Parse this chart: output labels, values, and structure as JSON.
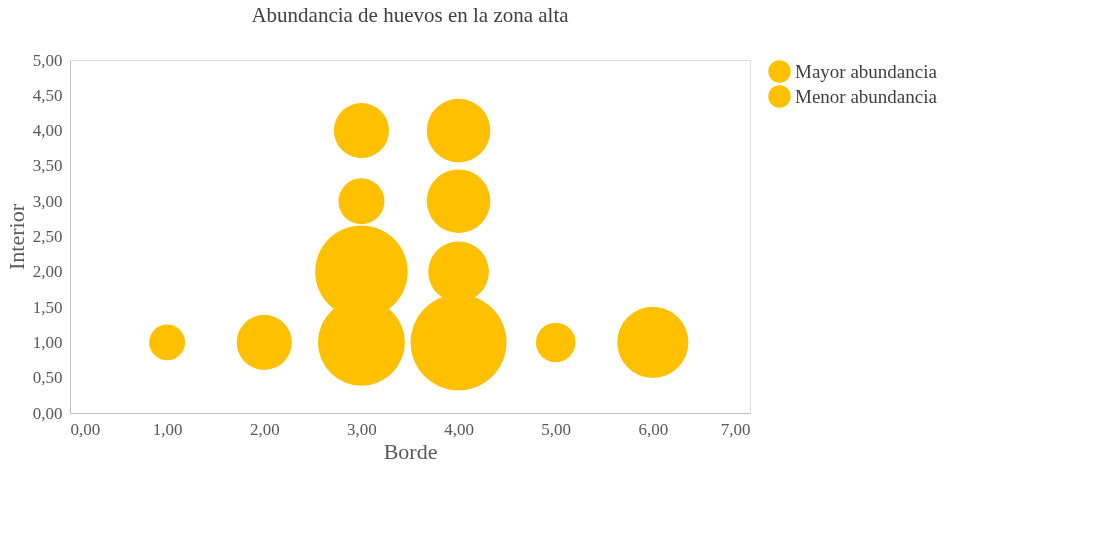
{
  "chart_data": {
    "type": "bubble",
    "title": "Abundancia  de huevos en la zona alta",
    "xlabel": "Borde",
    "ylabel": "Interior",
    "xlim": [
      0,
      7
    ],
    "xticks": [
      {
        "value": 0,
        "label": "0,00"
      },
      {
        "value": 1,
        "label": "1,00"
      },
      {
        "value": 2,
        "label": "2,00"
      },
      {
        "value": 3,
        "label": "3,00"
      },
      {
        "value": 4,
        "label": "4,00"
      },
      {
        "value": 5,
        "label": "5,00"
      },
      {
        "value": 6,
        "label": "6,00"
      },
      {
        "value": 7,
        "label": "7,00"
      }
    ],
    "ylim": [
      0,
      5
    ],
    "yticks": [
      {
        "value": 0,
        "label": "0,00"
      },
      {
        "value": 0.5,
        "label": "0,50"
      },
      {
        "value": 1,
        "label": "1,00"
      },
      {
        "value": 1.5,
        "label": "1,50"
      },
      {
        "value": 2,
        "label": "2,00"
      },
      {
        "value": 2.5,
        "label": "2,50"
      },
      {
        "value": 3,
        "label": "3,00"
      },
      {
        "value": 3.5,
        "label": "3,50"
      },
      {
        "value": 4,
        "label": "4,00"
      },
      {
        "value": 4.5,
        "label": "4,50"
      },
      {
        "value": 5,
        "label": "5,00"
      }
    ],
    "grid": false,
    "legend": "right",
    "series": [
      {
        "name": "Mayor abundancia",
        "color": "#ffc000",
        "x": [
          3,
          3,
          4,
          4,
          4,
          4,
          6
        ],
        "values": [
          1,
          2,
          1,
          2,
          3,
          4,
          1
        ],
        "sizes": [
          0.82,
          0.93,
          1,
          0.4,
          0.44,
          0.44,
          0.55
        ]
      },
      {
        "name": "Menor abundancia",
        "color": "#ffc000",
        "x": [
          1,
          2,
          3,
          3,
          5
        ],
        "values": [
          1,
          1,
          3,
          4,
          1
        ],
        "sizes": [
          0.14,
          0.33,
          0.23,
          0.33,
          0.17
        ]
      }
    ]
  }
}
